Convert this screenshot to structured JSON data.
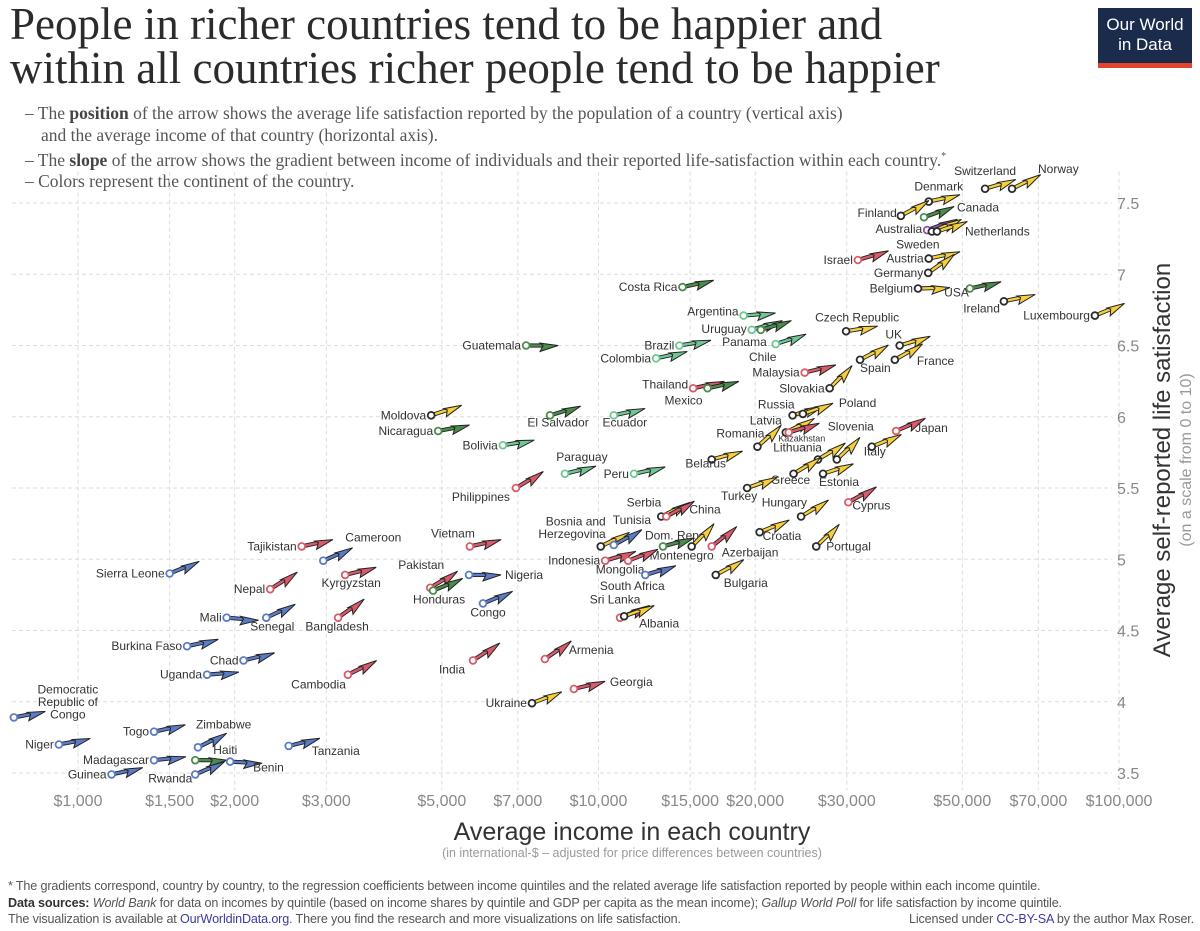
{
  "title": {
    "line1": "People in richer countries tend to be happier and",
    "line2": "within all countries richer people tend to be happier"
  },
  "logo": {
    "line1": "Our World",
    "line2": "in Data"
  },
  "description": {
    "l1_pre": "– The ",
    "l1_bold": "position",
    "l1_post": " of the arrow shows the average life satisfaction reported by the population of a country (vertical axis)",
    "l2": "and the average income of that country (horizontal axis).",
    "l3_pre": "– The ",
    "l3_bold": "slope",
    "l3_post": " of the arrow shows the gradient between income of individuals and their reported life-satisfaction within each country.",
    "l3_mark": "*",
    "l4": "– Colors represent the continent of the country."
  },
  "footer": {
    "note": "* The gradients correspond, country by country, to the regression coefficients between income quintiles and the related average life satisfaction reported by people within each income quintile.",
    "sources_label": "Data sources:",
    "src1": "World Bank",
    "src1_text": " for data on incomes by quintile (based on income shares by quintile and GDP per capita as the mean income); ",
    "src2": "Gallup World Poll",
    "src2_text": " for life satisfaction by income quintile.",
    "vis_pre": "The visualization is available at ",
    "vis_link": "OurWorldinData.org",
    "vis_post": ". There you find the research and more visualizations on life satisfaction.",
    "lic_pre": "Licensed under ",
    "lic_link": "CC-BY-SA",
    "lic_post": " by the author Max Roser."
  },
  "chart_data": {
    "type": "scatter",
    "xlabel": "Average income in each country",
    "xsublabel": "(in international-$ – adjusted for price differences between countries)",
    "ylabel": "Average self-reported life satisfaction",
    "ysublabel": "(on a scale from 0 to 10)",
    "x_scale": "log",
    "xlim": [
      750,
      100000
    ],
    "ylim": [
      3.45,
      7.65
    ],
    "grid": true,
    "x_ticks": [
      {
        "value": 1000,
        "label": "$1,000"
      },
      {
        "value": 1500,
        "label": "$1,500"
      },
      {
        "value": 2000,
        "label": "$2,000"
      },
      {
        "value": 3000,
        "label": "$3,000"
      },
      {
        "value": 5000,
        "label": "$5,000"
      },
      {
        "value": 7000,
        "label": "$7,000"
      },
      {
        "value": 10000,
        "label": "$10,000"
      },
      {
        "value": 15000,
        "label": "$15,000"
      },
      {
        "value": 20000,
        "label": "$20,000"
      },
      {
        "value": 30000,
        "label": "$30,000"
      },
      {
        "value": 50000,
        "label": "$50,000"
      },
      {
        "value": 70000,
        "label": "$70,000"
      },
      {
        "value": 100000,
        "label": "$100,000"
      }
    ],
    "y_ticks": [
      {
        "value": 7.5,
        "label": "7.5"
      },
      {
        "value": 7,
        "label": "7"
      },
      {
        "value": 6.5,
        "label": "6.5"
      },
      {
        "value": 6,
        "label": "6"
      },
      {
        "value": 5.5,
        "label": "5.5"
      },
      {
        "value": 5,
        "label": "5"
      },
      {
        "value": 4.5,
        "label": "4.5"
      },
      {
        "value": 4,
        "label": "4"
      },
      {
        "value": 3.5,
        "label": "3.5"
      }
    ],
    "continent_colors": {
      "Africa": "#5b7bc6",
      "Asia": "#d95a6a",
      "Europe": "#f6cf3c",
      "North America": "#4b8b4c",
      "South America": "#6fc893",
      "Oceania": "#8b57a9"
    },
    "countries": [
      {
        "name": "Sierra Leone",
        "continent": "Africa",
        "income": 1500,
        "satisfaction": 4.9,
        "gradient": 1.5
      },
      {
        "name": "Tajikistan",
        "continent": "Asia",
        "income": 2690,
        "satisfaction": 5.09,
        "gradient": 0.8
      },
      {
        "name": "Cameroon",
        "continent": "Africa",
        "income": 2960,
        "satisfaction": 4.99,
        "gradient": 1.6
      },
      {
        "name": "Nepal",
        "continent": "Asia",
        "income": 2340,
        "satisfaction": 4.79,
        "gradient": 2.3
      },
      {
        "name": "Kyrgyzstan",
        "continent": "Asia",
        "income": 3260,
        "satisfaction": 4.89,
        "gradient": 0.9
      },
      {
        "name": "Mali",
        "continent": "Africa",
        "income": 1930,
        "satisfaction": 4.59,
        "gradient": -0.3
      },
      {
        "name": "Senegal",
        "continent": "Africa",
        "income": 2300,
        "satisfaction": 4.59,
        "gradient": 1.7
      },
      {
        "name": "Bangladesh",
        "continent": "Asia",
        "income": 3160,
        "satisfaction": 4.59,
        "gradient": 2.6
      },
      {
        "name": "Burkina Faso",
        "continent": "Africa",
        "income": 1620,
        "satisfaction": 4.39,
        "gradient": 0.8
      },
      {
        "name": "Chad",
        "continent": "Africa",
        "income": 2080,
        "satisfaction": 4.29,
        "gradient": 0.9
      },
      {
        "name": "Uganda",
        "continent": "Africa",
        "income": 1770,
        "satisfaction": 4.19,
        "gradient": 0.3
      },
      {
        "name": "Cambodia",
        "continent": "Asia",
        "income": 3300,
        "satisfaction": 4.19,
        "gradient": 1.8
      },
      {
        "name": "Democratic Republic of Congo",
        "continent": "Africa",
        "income": 753,
        "satisfaction": 3.89,
        "gradient": 0.7
      },
      {
        "name": "Togo",
        "continent": "Africa",
        "income": 1400,
        "satisfaction": 3.79,
        "gradient": 0.8
      },
      {
        "name": "Zimbabwe",
        "continent": "Africa",
        "income": 1700,
        "satisfaction": 3.68,
        "gradient": 1.8
      },
      {
        "name": "Niger",
        "continent": "Africa",
        "income": 919,
        "satisfaction": 3.7,
        "gradient": 0.7
      },
      {
        "name": "Tanzania",
        "continent": "Africa",
        "income": 2540,
        "satisfaction": 3.69,
        "gradient": 0.9
      },
      {
        "name": "Madagascar",
        "continent": "Africa",
        "income": 1400,
        "satisfaction": 3.59,
        "gradient": 0.4
      },
      {
        "name": "Haiti",
        "continent": "North America",
        "income": 1680,
        "satisfaction": 3.59,
        "gradient": 0.0
      },
      {
        "name": "Benin",
        "continent": "Africa",
        "income": 1960,
        "satisfaction": 3.58,
        "gradient": -0.2
      },
      {
        "name": "Guinea",
        "continent": "Africa",
        "income": 1160,
        "satisfaction": 3.49,
        "gradient": 0.8
      },
      {
        "name": "Rwanda",
        "continent": "Africa",
        "income": 1680,
        "satisfaction": 3.49,
        "gradient": 1.6
      },
      {
        "name": "Philippines",
        "continent": "Asia",
        "income": 6940,
        "satisfaction": 5.5,
        "gradient": 2.2
      },
      {
        "name": "Vietnam",
        "continent": "Asia",
        "income": 5660,
        "satisfaction": 5.09,
        "gradient": 0.8
      },
      {
        "name": "Pakistan",
        "continent": "Asia",
        "income": 4750,
        "satisfaction": 4.8,
        "gradient": 2.2
      },
      {
        "name": "Honduras",
        "continent": "North America",
        "income": 4810,
        "satisfaction": 4.78,
        "gradient": 1.5
      },
      {
        "name": "Nigeria",
        "continent": "Africa",
        "income": 5640,
        "satisfaction": 4.89,
        "gradient": 0.0
      },
      {
        "name": "Congo",
        "continent": "Africa",
        "income": 6000,
        "satisfaction": 4.69,
        "gradient": 1.5
      },
      {
        "name": "Serbia",
        "continent": "Europe",
        "income": 13200,
        "satisfaction": 5.3,
        "gradient": 1.8
      },
      {
        "name": "China",
        "continent": "Asia",
        "income": 13500,
        "satisfaction": 5.3,
        "gradient": 2.0
      },
      {
        "name": "Bosnia and Herzegovina",
        "continent": "Europe",
        "income": 10100,
        "satisfaction": 5.09,
        "gradient": 1.8
      },
      {
        "name": "Tunisia",
        "continent": "Africa",
        "income": 10700,
        "satisfaction": 5.1,
        "gradient": 2.0
      },
      {
        "name": "Dom. Rep.",
        "continent": "North America",
        "income": 13300,
        "satisfaction": 5.09,
        "gradient": 1.0
      },
      {
        "name": "Montenegro",
        "continent": "Europe",
        "income": 15100,
        "satisfaction": 5.09,
        "gradient": 3.7
      },
      {
        "name": "Azerbaijan",
        "continent": "Asia",
        "income": 16500,
        "satisfaction": 5.09,
        "gradient": 2.9
      },
      {
        "name": "Indonesia",
        "continent": "Asia",
        "income": 10300,
        "satisfaction": 4.99,
        "gradient": 1.1
      },
      {
        "name": "Mongolia",
        "continent": "Asia",
        "income": 11400,
        "satisfaction": 4.99,
        "gradient": 1.4
      },
      {
        "name": "South Africa",
        "continent": "Africa",
        "income": 12300,
        "satisfaction": 4.89,
        "gradient": 1.1
      },
      {
        "name": "Bulgaria",
        "continent": "Europe",
        "income": 16800,
        "satisfaction": 4.89,
        "gradient": 2.0
      },
      {
        "name": "Sri Lanka",
        "continent": "Asia",
        "income": 11000,
        "satisfaction": 4.59,
        "gradient": 1.5
      },
      {
        "name": "Albania",
        "continent": "Europe",
        "income": 11200,
        "satisfaction": 4.6,
        "gradient": 1.3
      },
      {
        "name": "India",
        "continent": "Asia",
        "income": 5740,
        "satisfaction": 4.29,
        "gradient": 2.4
      },
      {
        "name": "Armenia",
        "continent": "Asia",
        "income": 7890,
        "satisfaction": 4.3,
        "gradient": 2.5
      },
      {
        "name": "Georgia",
        "continent": "Asia",
        "income": 8970,
        "satisfaction": 4.09,
        "gradient": 0.9
      },
      {
        "name": "Ukraine",
        "continent": "Europe",
        "income": 7450,
        "satisfaction": 3.99,
        "gradient": 1.4
      },
      {
        "name": "Switzerland",
        "continent": "Europe",
        "income": 55300,
        "satisfaction": 7.6,
        "gradient": 1.1
      },
      {
        "name": "Norway",
        "continent": "Europe",
        "income": 62300,
        "satisfaction": 7.6,
        "gradient": 1.8
      },
      {
        "name": "Denmark",
        "continent": "Europe",
        "income": 43100,
        "satisfaction": 7.51,
        "gradient": 0.8
      },
      {
        "name": "Finland",
        "continent": "Europe",
        "income": 38100,
        "satisfaction": 7.41,
        "gradient": 2.0
      },
      {
        "name": "Canada",
        "continent": "North America",
        "income": 42200,
        "satisfaction": 7.4,
        "gradient": 1.3
      },
      {
        "name": "Australia",
        "continent": "Oceania",
        "income": 42800,
        "satisfaction": 7.31,
        "gradient": 1.3
      },
      {
        "name": "Sweden",
        "continent": "Europe",
        "income": 43700,
        "satisfaction": 7.3,
        "gradient": 1.5
      },
      {
        "name": "Netherlands",
        "continent": "Europe",
        "income": 44700,
        "satisfaction": 7.3,
        "gradient": 1.2
      },
      {
        "name": "Israel",
        "continent": "Asia",
        "income": 31500,
        "satisfaction": 7.1,
        "gradient": 1.1
      },
      {
        "name": "Austria",
        "continent": "Europe",
        "income": 43100,
        "satisfaction": 7.11,
        "gradient": 0.8
      },
      {
        "name": "Germany",
        "continent": "Europe",
        "income": 43000,
        "satisfaction": 7.01,
        "gradient": 2.6
      },
      {
        "name": "Belgium",
        "continent": "Europe",
        "income": 41100,
        "satisfaction": 6.9,
        "gradient": 0.1
      },
      {
        "name": "USA",
        "continent": "North America",
        "income": 51700,
        "satisfaction": 6.9,
        "gradient": 0.8
      },
      {
        "name": "Ireland",
        "continent": "Europe",
        "income": 60100,
        "satisfaction": 6.81,
        "gradient": 0.8
      },
      {
        "name": "Luxembourg",
        "continent": "Europe",
        "income": 89900,
        "satisfaction": 6.71,
        "gradient": 1.5
      },
      {
        "name": "Czech Republic",
        "continent": "Europe",
        "income": 29900,
        "satisfaction": 6.6,
        "gradient": 0.6
      },
      {
        "name": "UK",
        "continent": "Europe",
        "income": 37900,
        "satisfaction": 6.5,
        "gradient": 1.1
      },
      {
        "name": "France",
        "continent": "Europe",
        "income": 37100,
        "satisfaction": 6.4,
        "gradient": 2.1
      },
      {
        "name": "Spain",
        "continent": "Europe",
        "income": 31800,
        "satisfaction": 6.4,
        "gradient": 1.9
      },
      {
        "name": "Malaysia",
        "continent": "Asia",
        "income": 24900,
        "satisfaction": 6.31,
        "gradient": 0.9
      },
      {
        "name": "Argentina",
        "continent": "South America",
        "income": 19000,
        "satisfaction": 6.71,
        "gradient": 0.3
      },
      {
        "name": "Uruguay",
        "continent": "South America",
        "income": 19700,
        "satisfaction": 6.61,
        "gradient": 1.1
      },
      {
        "name": "Panama",
        "continent": "North America",
        "income": 20500,
        "satisfaction": 6.61,
        "gradient": 1.1
      },
      {
        "name": "Chile",
        "continent": "South America",
        "income": 21900,
        "satisfaction": 6.51,
        "gradient": 1.2
      },
      {
        "name": "Slovakia",
        "continent": "Europe",
        "income": 27800,
        "satisfaction": 6.2,
        "gradient": 3.7
      },
      {
        "name": "Russia",
        "continent": "Europe",
        "income": 23600,
        "satisfaction": 6.01,
        "gradient": 1.1
      },
      {
        "name": "Poland",
        "continent": "Europe",
        "income": 24700,
        "satisfaction": 6.02,
        "gradient": 1.3
      },
      {
        "name": "Latvia",
        "continent": "Europe",
        "income": 22900,
        "satisfaction": 5.89,
        "gradient": 1.8
      },
      {
        "name": "Kazakhstan",
        "continent": "Asia",
        "income": 23200,
        "satisfaction": 5.89,
        "gradient": 1.1
      },
      {
        "name": "Romania",
        "continent": "Europe",
        "income": 20200,
        "satisfaction": 5.79,
        "gradient": 3.3
      },
      {
        "name": "Lithuania",
        "continent": "Europe",
        "income": 26400,
        "satisfaction": 5.7,
        "gradient": 2.2
      },
      {
        "name": "Greece",
        "continent": "Europe",
        "income": 23700,
        "satisfaction": 5.6,
        "gradient": 2.2
      },
      {
        "name": "Slovenia",
        "continent": "Europe",
        "income": 28700,
        "satisfaction": 5.7,
        "gradient": 3.5
      },
      {
        "name": "Estonia",
        "continent": "Europe",
        "income": 27000,
        "satisfaction": 5.6,
        "gradient": 1.2
      },
      {
        "name": "Italy",
        "continent": "Europe",
        "income": 33500,
        "satisfaction": 5.79,
        "gradient": 1.5
      },
      {
        "name": "Japan",
        "continent": "Asia",
        "income": 37300,
        "satisfaction": 5.9,
        "gradient": 1.6
      },
      {
        "name": "Turkey",
        "continent": "Europe",
        "income": 19300,
        "satisfaction": 5.5,
        "gradient": 1.3
      },
      {
        "name": "Hungary",
        "continent": "Europe",
        "income": 24500,
        "satisfaction": 5.3,
        "gradient": 2.2
      },
      {
        "name": "Cyprus",
        "continent": "Asia",
        "income": 30200,
        "satisfaction": 5.4,
        "gradient": 2.0
      },
      {
        "name": "Croatia",
        "continent": "Europe",
        "income": 20400,
        "satisfaction": 5.19,
        "gradient": 1.5
      },
      {
        "name": "Portugal",
        "continent": "Europe",
        "income": 26200,
        "satisfaction": 5.09,
        "gradient": 3.5
      },
      {
        "name": "Belarus",
        "continent": "Europe",
        "income": 16500,
        "satisfaction": 5.7,
        "gradient": 1.0
      },
      {
        "name": "Costa Rica",
        "continent": "North America",
        "income": 14500,
        "satisfaction": 6.91,
        "gradient": 0.8
      },
      {
        "name": "Guatemala",
        "continent": "North America",
        "income": 7260,
        "satisfaction": 6.5,
        "gradient": 0.0
      },
      {
        "name": "Brazil",
        "continent": "South America",
        "income": 14300,
        "satisfaction": 6.5,
        "gradient": 0.6
      },
      {
        "name": "Colombia",
        "continent": "South America",
        "income": 12900,
        "satisfaction": 6.41,
        "gradient": 0.8
      },
      {
        "name": "Thailand",
        "continent": "Asia",
        "income": 15200,
        "satisfaction": 6.2,
        "gradient": 0.8
      },
      {
        "name": "Mexico",
        "continent": "North America",
        "income": 16200,
        "satisfaction": 6.2,
        "gradient": 0.8
      },
      {
        "name": "Moldova",
        "continent": "Europe",
        "income": 4770,
        "satisfaction": 6.01,
        "gradient": 1.2
      },
      {
        "name": "Nicaragua",
        "continent": "North America",
        "income": 4920,
        "satisfaction": 5.9,
        "gradient": 0.7
      },
      {
        "name": "El Salvador",
        "continent": "North America",
        "income": 8070,
        "satisfaction": 6.01,
        "gradient": 1.1
      },
      {
        "name": "Ecuador",
        "continent": "South America",
        "income": 10700,
        "satisfaction": 6.01,
        "gradient": 0.8
      },
      {
        "name": "Bolivia",
        "continent": "South America",
        "income": 6550,
        "satisfaction": 5.8,
        "gradient": 0.6
      },
      {
        "name": "Paraguay",
        "continent": "South America",
        "income": 8620,
        "satisfaction": 5.6,
        "gradient": 0.9
      },
      {
        "name": "Peru",
        "continent": "South America",
        "income": 11700,
        "satisfaction": 5.6,
        "gradient": 0.8
      }
    ]
  }
}
